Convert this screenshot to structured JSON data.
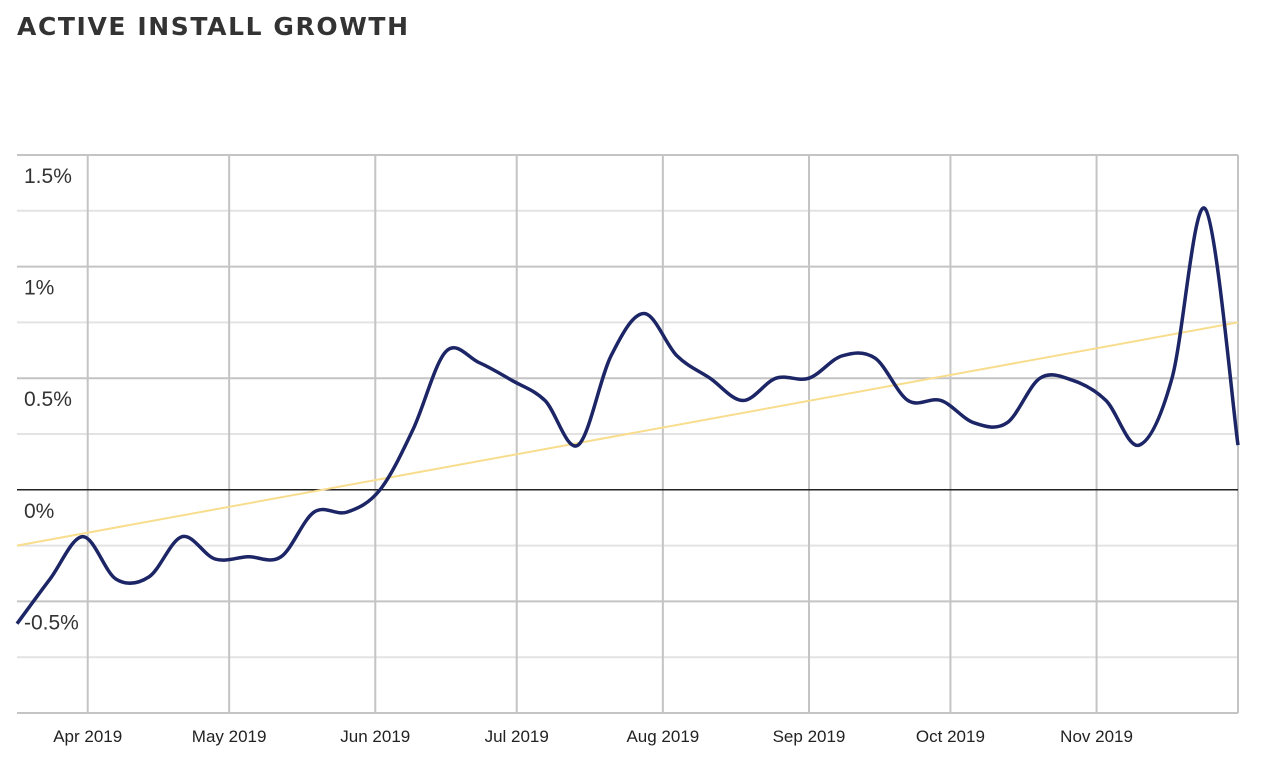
{
  "chart_data": {
    "type": "line",
    "title": "ACTIVE INSTALL GROWTH",
    "xlabel": "",
    "ylabel": "",
    "x_start": "2019-03-17",
    "x_end": "2019-12-01",
    "x_ticks": [
      {
        "date": "2019-04-01",
        "label": "Apr 2019"
      },
      {
        "date": "2019-05-01",
        "label": "May 2019"
      },
      {
        "date": "2019-06-01",
        "label": "Jun 2019"
      },
      {
        "date": "2019-07-01",
        "label": "Jul 2019"
      },
      {
        "date": "2019-08-01",
        "label": "Aug 2019"
      },
      {
        "date": "2019-09-01",
        "label": "Sep 2019"
      },
      {
        "date": "2019-10-01",
        "label": "Oct 2019"
      },
      {
        "date": "2019-11-01",
        "label": "Nov 2019"
      }
    ],
    "ylim": [
      -1.0,
      1.5
    ],
    "y_ticks": [
      {
        "value": 1.5,
        "label": "1.5%"
      },
      {
        "value": 1.0,
        "label": "1%"
      },
      {
        "value": 0.5,
        "label": "0.5%"
      },
      {
        "value": 0.0,
        "label": "0%"
      },
      {
        "value": -0.5,
        "label": "-0.5%"
      }
    ],
    "grid": true,
    "series": [
      {
        "color": "#1c2566",
        "x": [
          "2019-03-17",
          "2019-03-24",
          "2019-03-31",
          "2019-04-07",
          "2019-04-14",
          "2019-04-21",
          "2019-04-28",
          "2019-05-05",
          "2019-05-12",
          "2019-05-19",
          "2019-05-26",
          "2019-06-02",
          "2019-06-09",
          "2019-06-16",
          "2019-06-23",
          "2019-06-30",
          "2019-07-07",
          "2019-07-14",
          "2019-07-21",
          "2019-07-28",
          "2019-08-04",
          "2019-08-11",
          "2019-08-18",
          "2019-08-25",
          "2019-09-01",
          "2019-09-08",
          "2019-09-15",
          "2019-09-22",
          "2019-09-29",
          "2019-10-06",
          "2019-10-13",
          "2019-10-20",
          "2019-10-27",
          "2019-11-03",
          "2019-11-10",
          "2019-11-17",
          "2019-11-24",
          "2019-12-01"
        ],
        "values": [
          -0.6,
          -0.4,
          -0.21,
          -0.4,
          -0.39,
          -0.21,
          -0.31,
          -0.3,
          -0.3,
          -0.1,
          -0.1,
          0.0,
          0.27,
          0.62,
          0.57,
          0.49,
          0.4,
          0.2,
          0.6,
          0.79,
          0.6,
          0.5,
          0.4,
          0.5,
          0.5,
          0.6,
          0.59,
          0.4,
          0.4,
          0.3,
          0.3,
          0.5,
          0.49,
          0.4,
          0.2,
          0.5,
          1.26,
          0.2
        ]
      }
    ],
    "trendline": {
      "color": "#f9dd8e",
      "start_value": -0.25,
      "end_value": 0.75
    },
    "zero_line_color": "#222222"
  }
}
